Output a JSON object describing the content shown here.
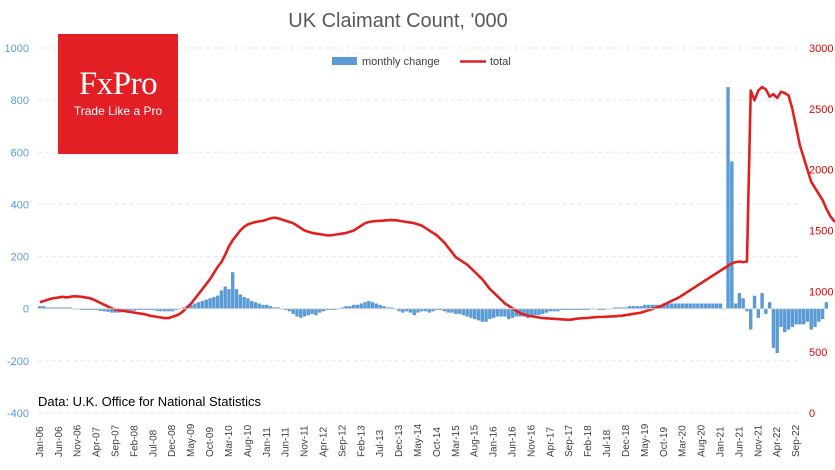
{
  "chart_data": {
    "type": "bar+line",
    "title": "UK Claimant Count, '000",
    "source": "Data: U.K. Office for National Statistics",
    "left_axis": {
      "ticks": [
        1000,
        800,
        600,
        400,
        200,
        0,
        -200,
        -400
      ],
      "ylim": [
        -400,
        1000
      ]
    },
    "right_axis": {
      "ticks": [
        3000,
        2500,
        2000,
        1500,
        1000,
        500,
        0
      ],
      "ylim": [
        0,
        3000
      ]
    },
    "x_tick_labels": [
      "Jan-06",
      "Jun-06",
      "Nov-06",
      "Apr-07",
      "Sep-07",
      "Feb-08",
      "Jul-08",
      "Dec-08",
      "May-09",
      "Oct-09",
      "Mar-10",
      "Aug-10",
      "Jan-11",
      "Jun-11",
      "Nov-11",
      "Apr-12",
      "Sep-12",
      "Feb-13",
      "Jul-13",
      "Dec-13",
      "May-14",
      "Oct-14",
      "Mar-15",
      "Aug-15",
      "Jan-16",
      "Jun-16",
      "Nov-16",
      "Apr-17",
      "Sep-17",
      "Feb-18",
      "Jul-18",
      "Dec-18",
      "May-19",
      "Oct-19",
      "Mar-20",
      "Aug-20",
      "Jan-21",
      "Jun-21",
      "Nov-21",
      "Apr-22",
      "Sep-22"
    ],
    "x_start": "2006-01",
    "month_count": 201,
    "legend": {
      "bar": "monthly change",
      "line": "total",
      "position": "top-center"
    },
    "colors": {
      "bar": "#5b9bd5",
      "line": "#e02020",
      "left_axis": "#5b9bd5",
      "right_axis": "#e00000",
      "grid": "#e6e6e6"
    },
    "series": [
      {
        "name": "monthly change",
        "axis": "left",
        "values": [
          10,
          10,
          5,
          5,
          5,
          5,
          5,
          5,
          5,
          0,
          0,
          -5,
          -5,
          -5,
          -5,
          -5,
          -8,
          -10,
          -12,
          -15,
          -15,
          -15,
          -10,
          -10,
          -8,
          -8,
          -5,
          -5,
          -5,
          -5,
          -5,
          -8,
          -10,
          -10,
          -10,
          -10,
          -5,
          0,
          5,
          10,
          15,
          20,
          25,
          30,
          35,
          40,
          45,
          50,
          70,
          85,
          75,
          140,
          75,
          55,
          45,
          40,
          30,
          25,
          20,
          15,
          15,
          10,
          5,
          5,
          0,
          -5,
          -10,
          -20,
          -30,
          -35,
          -30,
          -25,
          -20,
          -25,
          -15,
          -10,
          -5,
          -5,
          -5,
          0,
          5,
          10,
          10,
          15,
          15,
          20,
          25,
          30,
          25,
          20,
          15,
          10,
          5,
          5,
          0,
          -10,
          -15,
          -10,
          -15,
          -25,
          -15,
          -10,
          -10,
          -15,
          -10,
          -5,
          -5,
          -10,
          -15,
          -15,
          -20,
          -20,
          -25,
          -30,
          -35,
          -40,
          -45,
          -50,
          -50,
          -40,
          -35,
          -30,
          -30,
          -30,
          -40,
          -35,
          -30,
          -30,
          -30,
          -35,
          -30,
          -25,
          -25,
          -20,
          -15,
          -10,
          -10,
          -10,
          -5,
          -5,
          -5,
          -5,
          -5,
          -5,
          -5,
          -5,
          0,
          0,
          -5,
          -5,
          0,
          0,
          5,
          5,
          5,
          5,
          10,
          10,
          10,
          10,
          15,
          15,
          15,
          15,
          15,
          20,
          20,
          20,
          20,
          20,
          20,
          20,
          20,
          20,
          20,
          20,
          20,
          20,
          20,
          20,
          20,
          0,
          850,
          565,
          20,
          60,
          40,
          -10,
          -80,
          50,
          -35,
          60,
          -20,
          25,
          -150,
          -170,
          -70,
          -90,
          -80,
          -70,
          -60,
          -60,
          -60,
          -50,
          -80,
          -70,
          -50,
          -40,
          25
        ]
      },
      {
        "name": "total",
        "axis": "right",
        "values": [
          910,
          920,
          930,
          940,
          945,
          950,
          955,
          950,
          955,
          960,
          958,
          955,
          950,
          945,
          935,
          920,
          905,
          890,
          875,
          860,
          850,
          845,
          840,
          835,
          830,
          825,
          820,
          815,
          810,
          800,
          795,
          790,
          785,
          780,
          780,
          790,
          800,
          815,
          840,
          870,
          900,
          940,
          980,
          1020,
          1060,
          1100,
          1150,
          1200,
          1240,
          1300,
          1370,
          1420,
          1460,
          1500,
          1530,
          1550,
          1560,
          1570,
          1575,
          1580,
          1590,
          1600,
          1605,
          1600,
          1590,
          1580,
          1570,
          1560,
          1540,
          1520,
          1500,
          1490,
          1480,
          1475,
          1470,
          1465,
          1460,
          1460,
          1465,
          1470,
          1475,
          1480,
          1490,
          1500,
          1520,
          1540,
          1560,
          1570,
          1575,
          1578,
          1580,
          1582,
          1585,
          1586,
          1585,
          1580,
          1575,
          1570,
          1565,
          1560,
          1550,
          1540,
          1520,
          1500,
          1480,
          1460,
          1430,
          1400,
          1360,
          1320,
          1280,
          1260,
          1240,
          1220,
          1190,
          1160,
          1130,
          1100,
          1060,
          1020,
          990,
          960,
          930,
          900,
          880,
          860,
          840,
          820,
          810,
          800,
          795,
          790,
          785,
          780,
          778,
          776,
          774,
          772,
          770,
          768,
          766,
          770,
          775,
          778,
          780,
          782,
          785,
          788,
          790,
          790,
          792,
          794,
          795,
          798,
          800,
          805,
          810,
          815,
          820,
          825,
          835,
          845,
          855,
          865,
          875,
          890,
          905,
          920,
          935,
          950,
          970,
          990,
          1010,
          1030,
          1050,
          1070,
          1090,
          1110,
          1130,
          1150,
          1170,
          1190,
          1210,
          1230,
          1240,
          1245,
          1240,
          1245,
          2650,
          2570,
          2650,
          2680,
          2660,
          2600,
          2620,
          2590,
          2640,
          2630,
          2610,
          2500,
          2350,
          2200,
          2100,
          2000,
          1900,
          1850,
          1800,
          1750,
          1680,
          1620,
          1580,
          1560,
          1540,
          1520,
          1560
        ]
      }
    ]
  },
  "logo": {
    "brand": "FxPro",
    "tagline": "Trade Like a Pro",
    "background": "#e31e24"
  }
}
